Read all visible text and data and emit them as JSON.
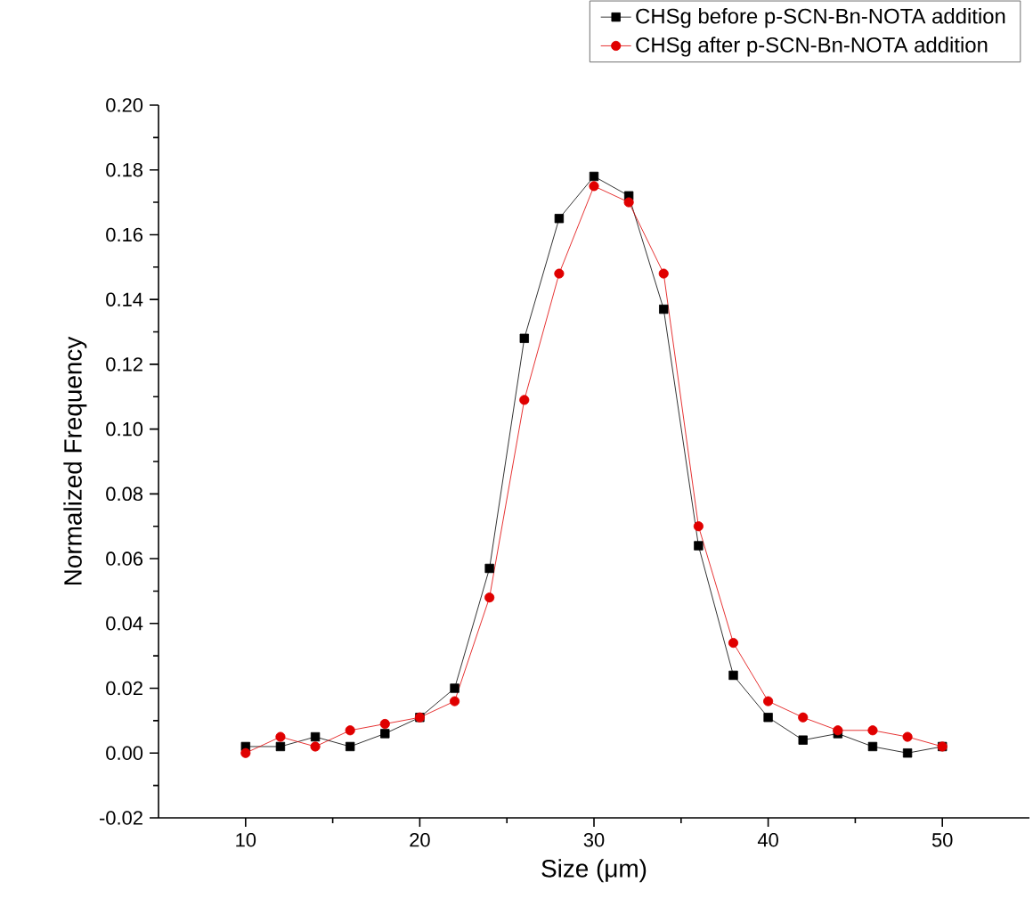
{
  "chart_data": {
    "type": "line",
    "xlabel": "Size (μm)",
    "ylabel": "Normalized Frequency",
    "x": [
      10,
      12,
      14,
      16,
      18,
      20,
      22,
      24,
      26,
      28,
      30,
      32,
      34,
      36,
      38,
      40,
      42,
      44,
      46,
      48,
      50
    ],
    "series": [
      {
        "name": "CHSg before p-SCN-Bn-NOTA addition",
        "color": "#000000",
        "marker": "square",
        "values": [
          0.002,
          0.002,
          0.005,
          0.002,
          0.006,
          0.011,
          0.02,
          0.057,
          0.128,
          0.165,
          0.178,
          0.172,
          0.137,
          0.064,
          0.024,
          0.011,
          0.004,
          0.006,
          0.002,
          0.0,
          0.002
        ]
      },
      {
        "name": "CHSg after p-SCN-Bn-NOTA addition",
        "color": "#e00000",
        "marker": "circle",
        "values": [
          0.0,
          0.005,
          0.002,
          0.007,
          0.009,
          0.011,
          0.016,
          0.048,
          0.109,
          0.148,
          0.175,
          0.17,
          0.148,
          0.07,
          0.034,
          0.016,
          0.011,
          0.007,
          0.007,
          0.005,
          0.002
        ]
      }
    ],
    "xlim": [
      5,
      55
    ],
    "xticks": [
      10,
      20,
      30,
      40,
      50
    ],
    "ylim": [
      -0.02,
      0.2
    ],
    "yticks": [
      {
        "value": -0.02,
        "label": "-0.02"
      },
      {
        "value": 0,
        "label": "0.00"
      },
      {
        "value": 0.02,
        "label": "0.02"
      },
      {
        "value": 0.04,
        "label": "0.04"
      },
      {
        "value": 0.06,
        "label": "0.06"
      },
      {
        "value": 0.08,
        "label": "0.08"
      },
      {
        "value": 0.1,
        "label": "0.10"
      },
      {
        "value": 0.12,
        "label": "0.12"
      },
      {
        "value": 0.14,
        "label": "0.14"
      },
      {
        "value": 0.16,
        "label": "0.16"
      },
      {
        "value": 0.18,
        "label": "0.18"
      },
      {
        "value": 0.2,
        "label": "0.20"
      }
    ],
    "legend": "top right",
    "grid": false,
    "line_style": "solid"
  }
}
